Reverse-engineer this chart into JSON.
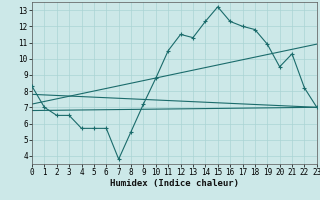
{
  "xlabel": "Humidex (Indice chaleur)",
  "bg_color": "#cce8e8",
  "grid_color": "#aad4d4",
  "line_color": "#1a6b6b",
  "xlim": [
    0,
    23
  ],
  "ylim": [
    3.5,
    13.5
  ],
  "xticks": [
    0,
    1,
    2,
    3,
    4,
    5,
    6,
    7,
    8,
    9,
    10,
    11,
    12,
    13,
    14,
    15,
    16,
    17,
    18,
    19,
    20,
    21,
    22,
    23
  ],
  "yticks": [
    4,
    5,
    6,
    7,
    8,
    9,
    10,
    11,
    12,
    13
  ],
  "line1_x": [
    0,
    1,
    2,
    3,
    4,
    5,
    6,
    7,
    8,
    9,
    10,
    11,
    12,
    13,
    14,
    15,
    16,
    17,
    18,
    19,
    20,
    21,
    22,
    23
  ],
  "line1_y": [
    8.3,
    7.0,
    6.5,
    6.5,
    5.7,
    5.7,
    5.7,
    3.8,
    5.5,
    7.2,
    8.8,
    10.5,
    11.5,
    11.3,
    12.3,
    13.2,
    12.3,
    12.0,
    11.8,
    10.9,
    9.5,
    10.3,
    8.2,
    7.0
  ],
  "line2_x": [
    0,
    23
  ],
  "line2_y": [
    7.8,
    7.0
  ],
  "line3_x": [
    0,
    23
  ],
  "line3_y": [
    7.2,
    10.9
  ],
  "line4_x": [
    0,
    23
  ],
  "line4_y": [
    6.8,
    7.0
  ]
}
